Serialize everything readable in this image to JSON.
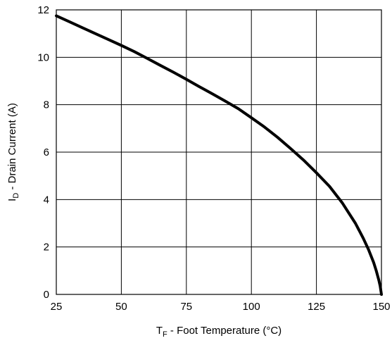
{
  "chart_data": {
    "type": "line",
    "xlabel": {
      "main": "T",
      "sub": "F",
      "rest": " -  Foot Temperature (°C)"
    },
    "ylabel": {
      "main": "I",
      "sub": "D",
      "rest": " -  Drain Current (A)"
    },
    "xlim": [
      25,
      150
    ],
    "ylim": [
      0,
      12
    ],
    "xticks": [
      25,
      50,
      75,
      100,
      125,
      150
    ],
    "yticks": [
      0,
      2,
      4,
      6,
      8,
      10,
      12
    ],
    "grid": true,
    "series": [
      {
        "x": [
          25,
          30,
          35,
          40,
          45,
          50,
          55,
          60,
          65,
          70,
          75,
          80,
          85,
          90,
          95,
          100,
          105,
          110,
          115,
          120,
          125,
          130,
          135,
          140,
          143,
          145,
          147,
          148,
          149,
          149.5,
          150
        ],
        "y": [
          11.75,
          11.5,
          11.25,
          11.0,
          10.75,
          10.5,
          10.24,
          9.95,
          9.66,
          9.37,
          9.07,
          8.76,
          8.46,
          8.15,
          7.83,
          7.45,
          7.06,
          6.63,
          6.16,
          5.67,
          5.13,
          4.56,
          3.85,
          3.0,
          2.37,
          1.9,
          1.35,
          1.0,
          0.6,
          0.35,
          0.0
        ],
        "color": "#000000"
      }
    ]
  }
}
